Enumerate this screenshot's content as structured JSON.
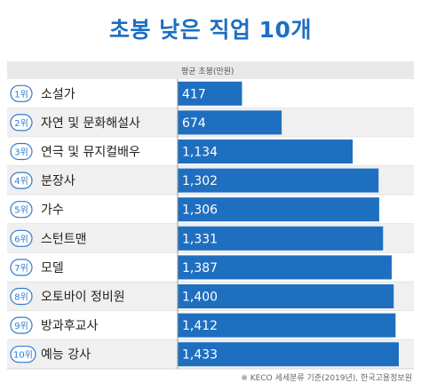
{
  "title": "초봉 낮은 직업 10개",
  "footnote": "※ KECO 세세분류 기준(2019년), 한국고용정보원",
  "chart_data": {
    "type": "bar",
    "orientation": "horizontal",
    "title": "초봉 낮은 직업 10개",
    "series_label": "평균 초봉(만원)",
    "ranks": [
      "1위",
      "2위",
      "3위",
      "4위",
      "5위",
      "6위",
      "7위",
      "8위",
      "9위",
      "10위"
    ],
    "categories": [
      "소설가",
      "자연 및 문화해설사",
      "연극 및 뮤지컬배우",
      "분장사",
      "가수",
      "스턴트맨",
      "모델",
      "오토바이 정비원",
      "방과후교사",
      "예능 강사"
    ],
    "values": [
      417,
      674,
      1134,
      1302,
      1306,
      1331,
      1387,
      1400,
      1412,
      1433
    ],
    "value_labels": [
      "417",
      "674",
      "1,134",
      "1,302",
      "1,306",
      "1,331",
      "1,387",
      "1,400",
      "1,412",
      "1,433"
    ],
    "colors": {
      "title": "#1d6fc2",
      "bar": "#1f6fc0",
      "rank_badge": "#2f7bd0",
      "row_odd": "#ffffff",
      "row_even": "#f0f0f0",
      "row_line": "#d4d4d4"
    }
  }
}
